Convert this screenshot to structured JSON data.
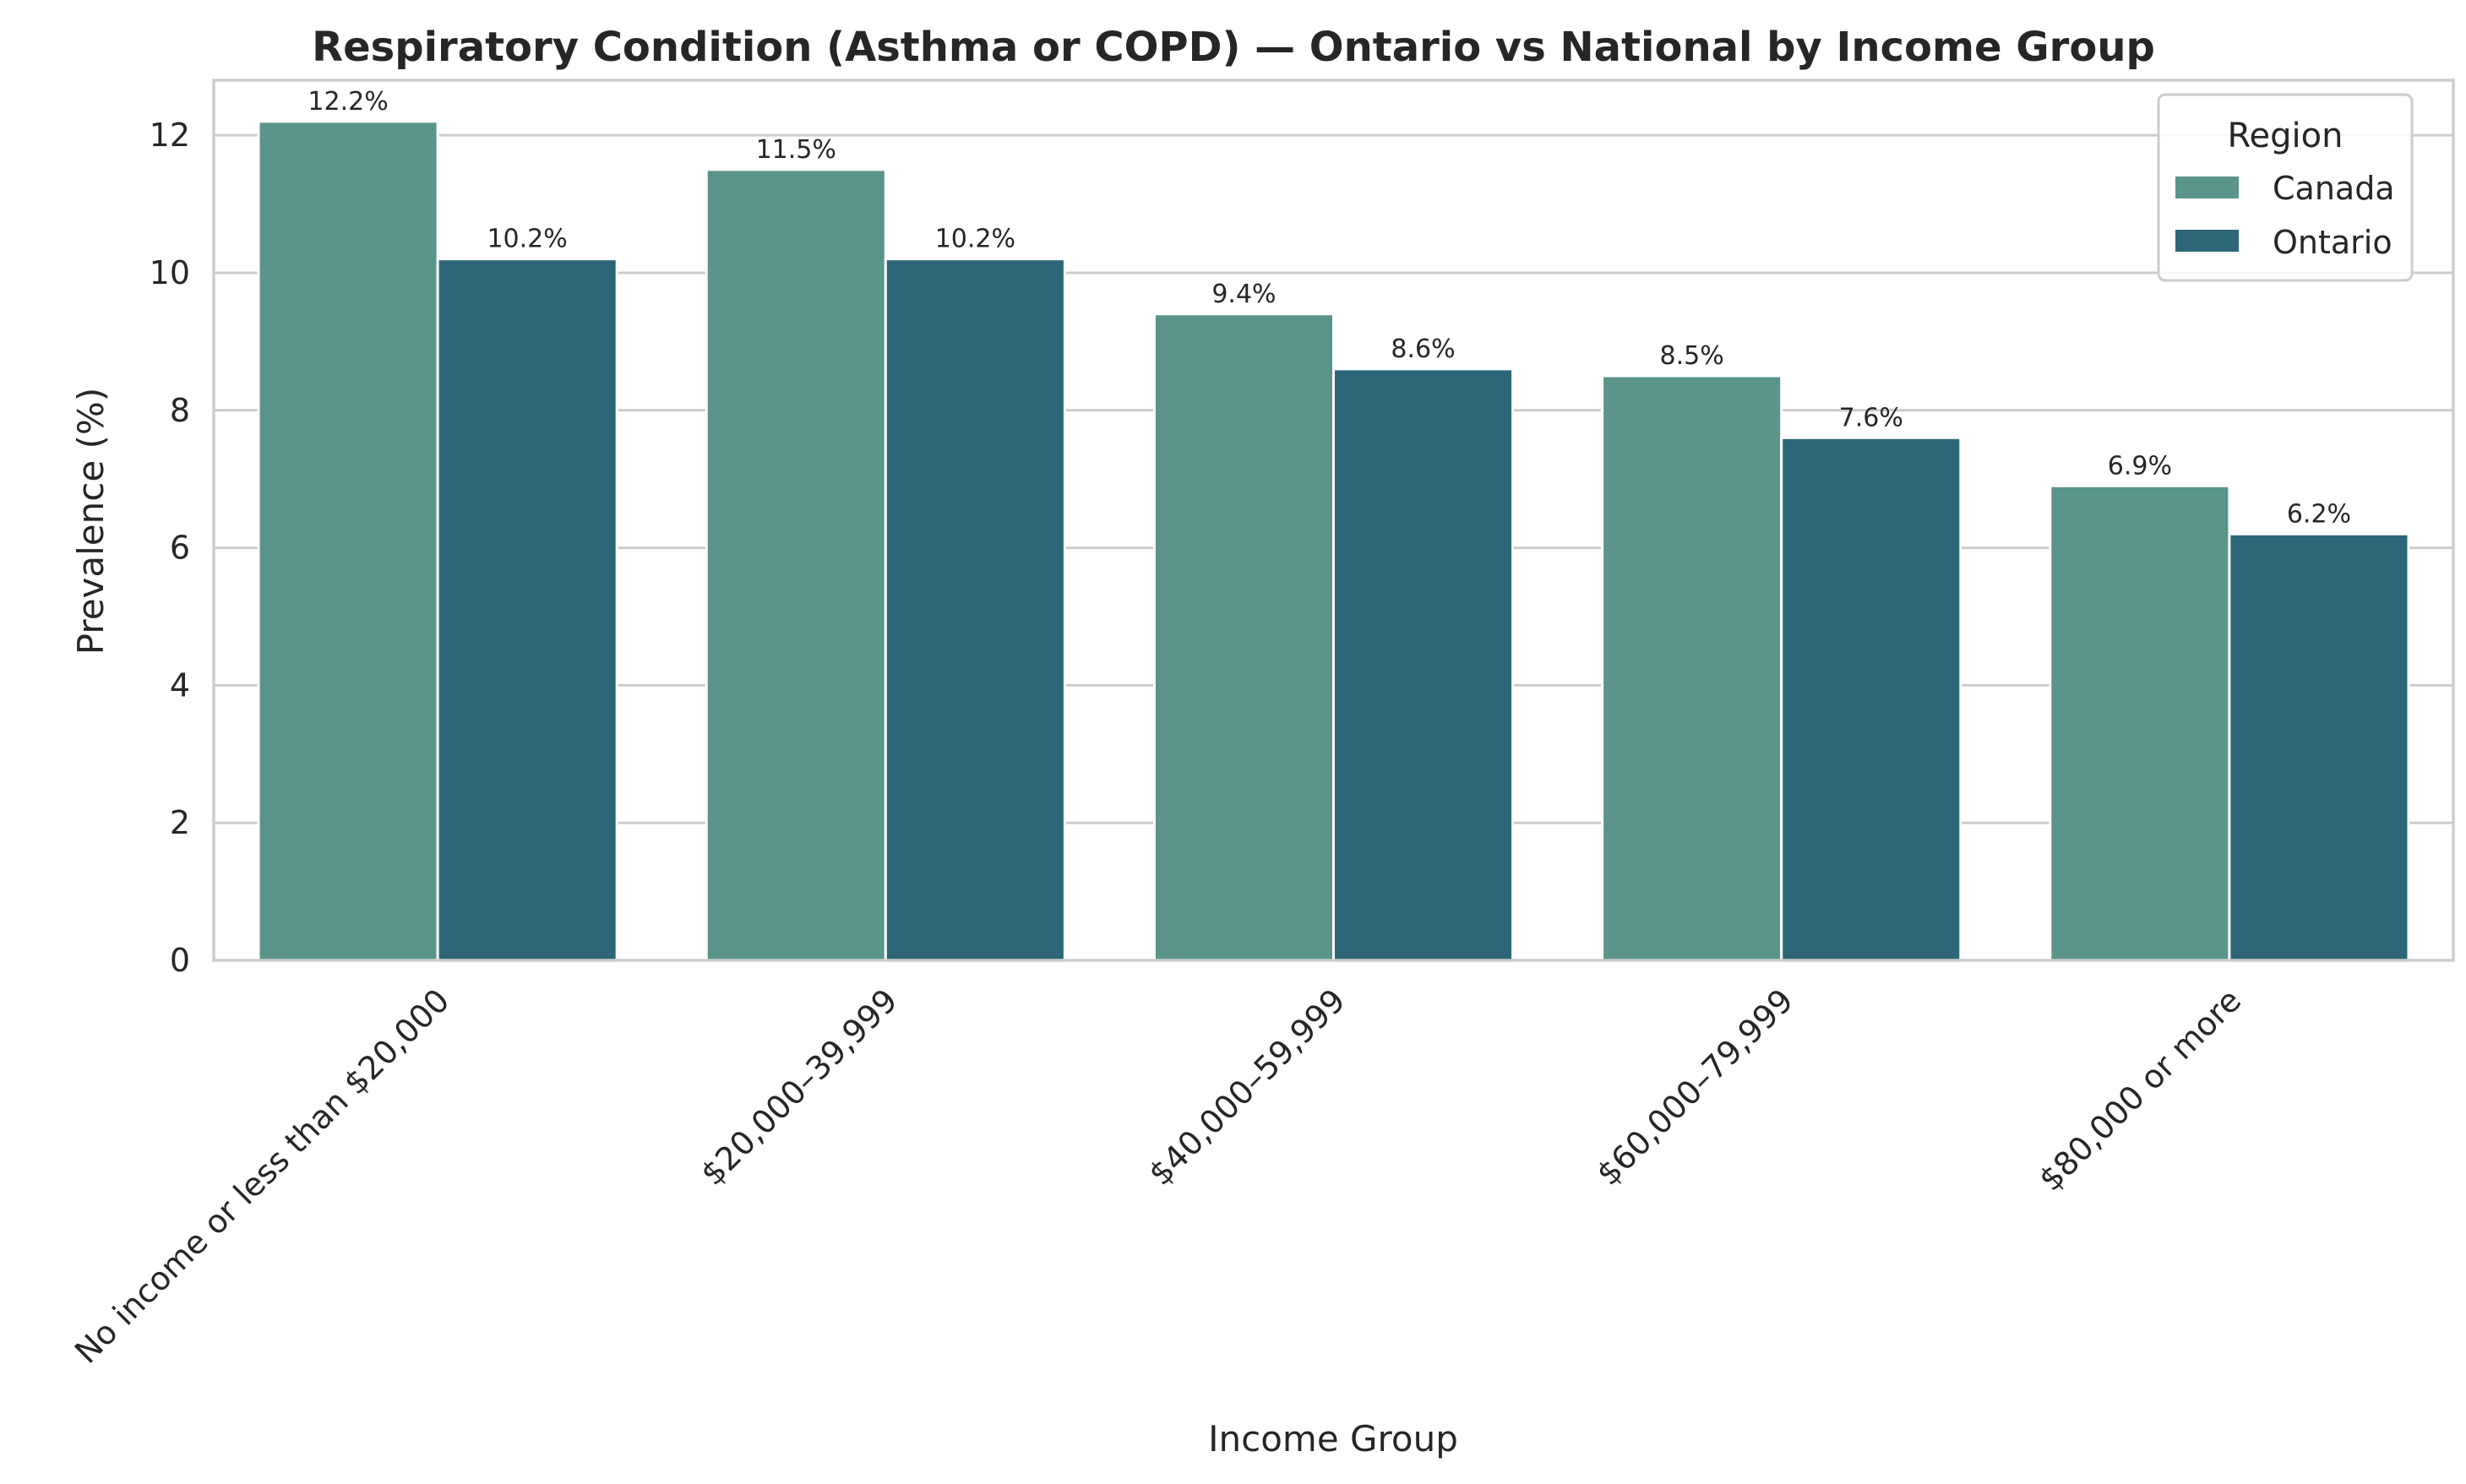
{
  "chart_data": {
    "type": "bar",
    "title": "Respiratory Condition (Asthma or COPD) — Ontario vs National by Income Group",
    "xlabel": "Income Group",
    "ylabel": "Prevalence (%)",
    "ylim": [
      0,
      12.8
    ],
    "yticks": [
      0,
      2,
      4,
      6,
      8,
      10,
      12
    ],
    "grid": "horizontal",
    "legend_title": "Region",
    "legend_placement": "top-right",
    "categories": [
      "No income or less than $20,000",
      "$20,000–39,999",
      "$40,000–59,999",
      "$60,000–79,999",
      "$80,000 or more"
    ],
    "series": [
      {
        "name": "Canada",
        "color": "#5a948a",
        "values": [
          12.2,
          11.5,
          9.4,
          8.5,
          6.9
        ],
        "labels": [
          "12.2%",
          "11.5%",
          "9.4%",
          "8.5%",
          "6.9%"
        ]
      },
      {
        "name": "Ontario",
        "color": "#2d6679",
        "values": [
          10.2,
          10.2,
          8.6,
          7.6,
          6.2
        ],
        "labels": [
          "10.2%",
          "10.2%",
          "8.6%",
          "7.6%",
          "6.2%"
        ]
      }
    ]
  }
}
